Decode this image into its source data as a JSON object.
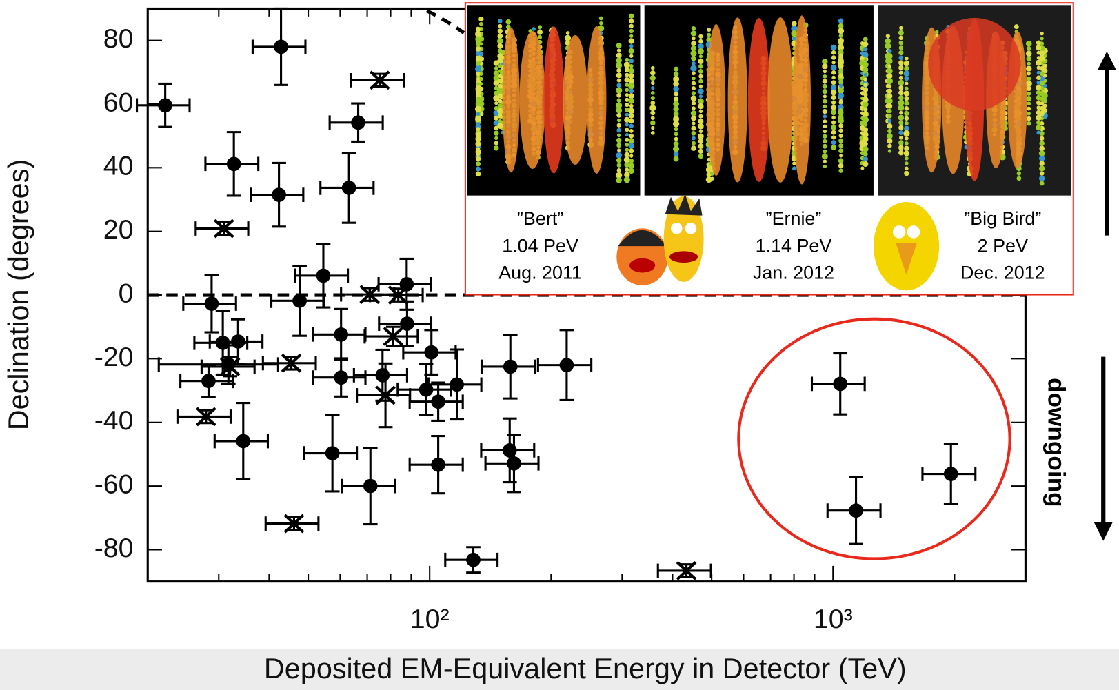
{
  "chart_data": {
    "type": "scatter",
    "xlabel": "Deposited EM-Equivalent Energy in Detector (TeV)",
    "ylabel": "Declination (degrees)",
    "xscale": "log",
    "xlim": [
      20,
      3000
    ],
    "ylim": [
      -90,
      90
    ],
    "xticks": [
      {
        "value": 100,
        "label": "10²"
      },
      {
        "value": 1000,
        "label": "10³"
      }
    ],
    "minor_xticks": [
      20,
      30,
      40,
      50,
      60,
      70,
      80,
      90,
      200,
      300,
      400,
      500,
      600,
      700,
      800,
      900,
      2000,
      3000
    ],
    "yticks": [
      -80,
      -60,
      -40,
      -20,
      0,
      20,
      40,
      60,
      80
    ],
    "color": "#000000",
    "series": [
      {
        "marker": "circle",
        "x": [
          22.1,
          42.8,
          32.7,
          42.3,
          66.5,
          63.1,
          54.5,
          47.6,
          87.7,
          87.9,
          28.8,
          30.7,
          33.5,
          28.3,
          31.7,
          60.3,
          60.3,
          76.4,
          101,
          98,
          105,
          116.8,
          158.5,
          218.6,
          34.5,
          57.4,
          71.3,
          105,
          157.9,
          161.8,
          128.3,
          1042,
          1140,
          1960
        ],
        "values": [
          59.6,
          78,
          41.2,
          31.5,
          54.2,
          33.7,
          6.1,
          -1.8,
          3.4,
          -9,
          -2.7,
          -15,
          -14.6,
          -27,
          -21.8,
          -12.4,
          -25.9,
          -25.2,
          -18,
          -29.7,
          -33.5,
          -28.1,
          -22.5,
          -22,
          -45.9,
          -49.7,
          -60,
          -53.3,
          -48.8,
          -52.9,
          -83.2,
          -27.9,
          -67.7,
          -56.2
        ],
        "yerr": [
          6.8,
          12,
          10,
          10,
          6,
          11,
          10,
          11,
          8,
          7,
          9,
          10,
          7,
          5,
          6,
          8,
          6,
          8,
          7,
          8,
          6,
          11,
          10,
          11,
          12,
          12,
          12,
          9,
          10,
          9,
          4,
          9.6,
          10.5,
          9.5
        ],
        "xerr": [
          3.3,
          6.4,
          4.9,
          6.3,
          10,
          9.5,
          8.2,
          7.1,
          13,
          13,
          4.3,
          4.6,
          5,
          4.2,
          10.4,
          9,
          9,
          11.5,
          15,
          14.7,
          15.8,
          17.5,
          24,
          33,
          5.2,
          8.6,
          10.7,
          15.8,
          23.7,
          24.3,
          19,
          156,
          171,
          294
        ]
      },
      {
        "marker": "cross",
        "x": [
          30.9,
          75.2,
          71,
          83.6,
          81.2,
          77.7,
          45.4,
          32,
          27.9,
          46.1,
          433
        ],
        "values": [
          20.9,
          67.5,
          0.2,
          0,
          -13,
          -31.5,
          -21.4,
          -22.5,
          -38.2,
          -71.8,
          -86.6
        ],
        "yerr": [
          2,
          2,
          2,
          2,
          3,
          10,
          2,
          3,
          2,
          2,
          2
        ],
        "xerr": [
          4.6,
          11.3,
          10.7,
          12.5,
          12.2,
          11.7,
          6.8,
          4.8,
          4.2,
          6.9,
          65
        ]
      }
    ],
    "side_label": "downgoing",
    "events": [
      {
        "name": "”Bert”",
        "energy": "1.04 PeV",
        "date": "Aug. 2011"
      },
      {
        "name": "”Ernie”",
        "energy": "1.14 PeV",
        "date": "Jan. 2012"
      },
      {
        "name": "”Big Bird”",
        "energy": "2 PeV",
        "date": "Dec. 2012"
      }
    ]
  }
}
